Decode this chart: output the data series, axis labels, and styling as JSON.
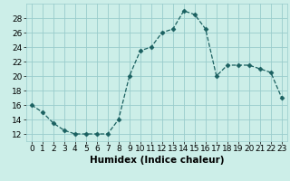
{
  "x": [
    0,
    1,
    2,
    3,
    4,
    5,
    6,
    7,
    8,
    9,
    10,
    11,
    12,
    13,
    14,
    15,
    16,
    17,
    18,
    19,
    20,
    21,
    22,
    23
  ],
  "y": [
    16,
    15,
    13.5,
    12.5,
    12,
    12,
    12,
    12,
    14,
    20,
    23.5,
    24,
    26,
    26.5,
    29,
    28.5,
    26.5,
    20,
    21.5,
    21.5,
    21.5,
    21,
    20.5,
    17
  ],
  "line_color": "#1a6060",
  "marker": "D",
  "marker_size": 2.5,
  "bg_color": "#cceee8",
  "grid_color": "#99cccc",
  "xlabel": "Humidex (Indice chaleur)",
  "ylim": [
    11,
    30
  ],
  "xlim": [
    -0.5,
    23.5
  ],
  "yticks": [
    12,
    14,
    16,
    18,
    20,
    22,
    24,
    26,
    28
  ],
  "xticks": [
    0,
    1,
    2,
    3,
    4,
    5,
    6,
    7,
    8,
    9,
    10,
    11,
    12,
    13,
    14,
    15,
    16,
    17,
    18,
    19,
    20,
    21,
    22,
    23
  ],
  "xlabel_fontsize": 7.5,
  "tick_fontsize": 6.5
}
